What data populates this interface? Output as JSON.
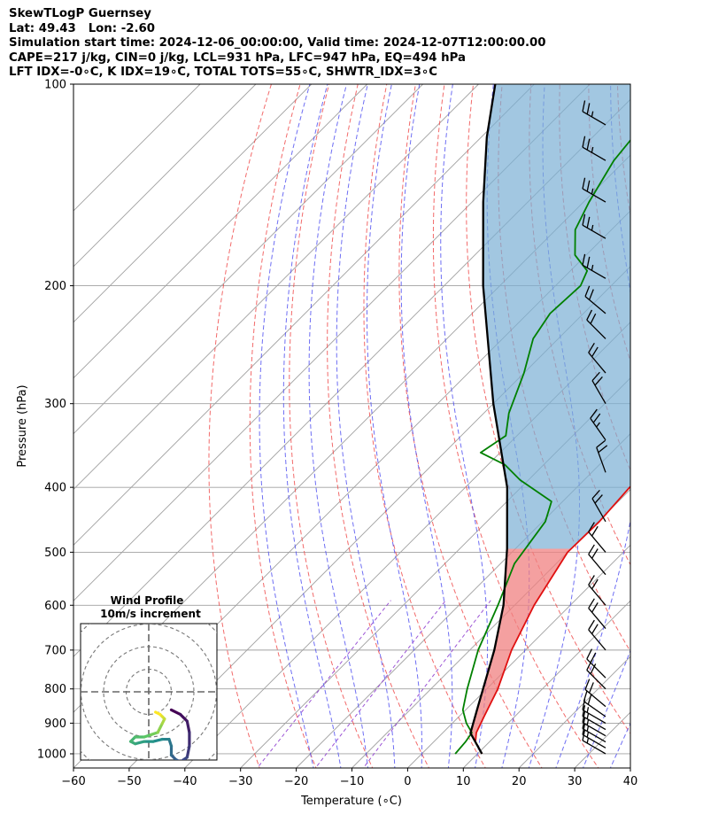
{
  "header": {
    "line1": "SkewTLogP Guernsey",
    "line2": "Lat: 49.43   Lon: -2.60",
    "line3": "Simulation start time: 2024-12-06_00:00:00, Valid time: 2024-12-07T12:00:00.00",
    "line4": "CAPE=217 j/kg, CIN=0 j/kg, LCL=931 hPa, LFC=947 hPa, EQ=494 hPa",
    "line5": "LFT IDX=-0∘C, K IDX=19∘C, TOTAL TOTS=55∘C, SHWTR_IDX=3∘C"
  },
  "chart_data": {
    "type": "line",
    "title": "SkewTLogP Guernsey",
    "xlabel": "Temperature (∘C)",
    "ylabel": "Pressure (hPa)",
    "xlim": [
      -60,
      40
    ],
    "ylim": [
      1050,
      100
    ],
    "y_scale": "log",
    "skew_degrees": 45,
    "grid": true,
    "x_ticks": [
      -60,
      -50,
      -40,
      -30,
      -20,
      -10,
      0,
      10,
      20,
      30,
      40
    ],
    "x_tick_labels": [
      "−60",
      "−50",
      "−40",
      "−30",
      "−20",
      "−10",
      "0",
      "10",
      "20",
      "30",
      "40"
    ],
    "y_ticks": [
      1000,
      900,
      800,
      700,
      600,
      500,
      400,
      300,
      200,
      100
    ],
    "y_tick_labels": [
      "1000",
      "900",
      "800",
      "700",
      "600",
      "500",
      "400",
      "300",
      "200",
      "100"
    ],
    "colors": {
      "temperature": "#e01010",
      "dewpoint": "#008000",
      "parcel": "#000000",
      "cape_fill": "#f08080",
      "cin_fill": "#7bafd4",
      "dry_adiabat": "#f05050",
      "moist_adiabat": "#4a4af0",
      "mixing_ratio": "#9040d0",
      "grid": "#a0a0a0"
    },
    "series": [
      {
        "name": "temperature",
        "points": [
          {
            "p": 1000,
            "t": 10.8
          },
          {
            "p": 960,
            "t": 7.5
          },
          {
            "p": 930,
            "t": 6.0
          },
          {
            "p": 880,
            "t": 4.5
          },
          {
            "p": 800,
            "t": 2.0
          },
          {
            "p": 700,
            "t": -2.5
          },
          {
            "p": 600,
            "t": -6.5
          },
          {
            "p": 500,
            "t": -10.0
          },
          {
            "p": 450,
            "t": -9.8
          },
          {
            "p": 400,
            "t": -10.5
          },
          {
            "p": 370,
            "t": -9.6
          },
          {
            "p": 340,
            "t": -8.2
          },
          {
            "p": 320,
            "t": -6.8
          },
          {
            "p": 300,
            "t": -5.6
          },
          {
            "p": 280,
            "t": -4.0
          },
          {
            "p": 260,
            "t": -3.5
          },
          {
            "p": 240,
            "t": -3.8
          },
          {
            "p": 220,
            "t": -4.0
          },
          {
            "p": 200,
            "t": -5.0
          },
          {
            "p": 180,
            "t": -6.0
          },
          {
            "p": 160,
            "t": -6.0
          },
          {
            "p": 140,
            "t": -11.0
          },
          {
            "p": 120,
            "t": -16.0
          },
          {
            "p": 110,
            "t": -18.5
          },
          {
            "p": 100,
            "t": -20.5
          }
        ]
      },
      {
        "name": "dewpoint",
        "points": [
          {
            "p": 1000,
            "t": 6.0
          },
          {
            "p": 960,
            "t": 5.7
          },
          {
            "p": 930,
            "t": 5.2
          },
          {
            "p": 900,
            "t": 2.5
          },
          {
            "p": 860,
            "t": -0.5
          },
          {
            "p": 800,
            "t": -3.5
          },
          {
            "p": 700,
            "t": -8.5
          },
          {
            "p": 600,
            "t": -13.0
          },
          {
            "p": 520,
            "t": -17.5
          },
          {
            "p": 450,
            "t": -19.5
          },
          {
            "p": 420,
            "t": -22.0
          },
          {
            "p": 390,
            "t": -31.5
          },
          {
            "p": 370,
            "t": -37.0
          },
          {
            "p": 355,
            "t": -43.5
          },
          {
            "p": 335,
            "t": -42.0
          },
          {
            "p": 310,
            "t": -45.5
          },
          {
            "p": 270,
            "t": -50.0
          },
          {
            "p": 240,
            "t": -54.5
          },
          {
            "p": 220,
            "t": -56.0
          },
          {
            "p": 200,
            "t": -55.5
          },
          {
            "p": 190,
            "t": -57.0
          },
          {
            "p": 180,
            "t": -62.0
          },
          {
            "p": 165,
            "t": -66.5
          },
          {
            "p": 150,
            "t": -69.0
          },
          {
            "p": 130,
            "t": -72.0
          },
          {
            "p": 100,
            "t": -74.5
          }
        ]
      },
      {
        "name": "parcel",
        "points": [
          {
            "p": 1000,
            "t": 10.8
          },
          {
            "p": 931,
            "t": 5.0
          },
          {
            "p": 850,
            "t": 1.6
          },
          {
            "p": 700,
            "t": -5.6
          },
          {
            "p": 600,
            "t": -12.0
          },
          {
            "p": 494,
            "t": -21.5
          },
          {
            "p": 400,
            "t": -32.5
          },
          {
            "p": 300,
            "t": -50.0
          },
          {
            "p": 200,
            "t": -73.0
          },
          {
            "p": 150,
            "t": -88.0
          },
          {
            "p": 120,
            "t": -99.0
          },
          {
            "p": 100,
            "t": -107.0
          }
        ]
      }
    ],
    "inset": {
      "title_line1": "Wind Profile",
      "title_line2": "10m/s increment",
      "ring_increment_ms": 10,
      "rings": 3,
      "hodograph": [
        {
          "u": 5.0,
          "v": -4.0
        },
        {
          "u": 7.0,
          "v": -5.0
        },
        {
          "u": 8.5,
          "v": -6.5
        },
        {
          "u": 9.0,
          "v": -9.0
        },
        {
          "u": 9.0,
          "v": -12.0
        },
        {
          "u": 8.5,
          "v": -14.5
        },
        {
          "u": 7.0,
          "v": -15.5
        },
        {
          "u": 6.0,
          "v": -15.0
        },
        {
          "u": 5.0,
          "v": -14.0
        },
        {
          "u": 5.0,
          "v": -12.0
        },
        {
          "u": 4.5,
          "v": -10.5
        },
        {
          "u": 3.0,
          "v": -10.5
        },
        {
          "u": 1.0,
          "v": -11.0
        },
        {
          "u": -1.0,
          "v": -11.0
        },
        {
          "u": -3.0,
          "v": -11.5
        },
        {
          "u": -4.0,
          "v": -11.0
        },
        {
          "u": -3.0,
          "v": -10.0
        },
        {
          "u": -1.0,
          "v": -10.0
        },
        {
          "u": 0.5,
          "v": -9.5
        },
        {
          "u": 2.0,
          "v": -9.0
        },
        {
          "u": 3.0,
          "v": -7.0
        },
        {
          "u": 3.5,
          "v": -6.0
        },
        {
          "u": 3.0,
          "v": -5.5
        },
        {
          "u": 2.5,
          "v": -5.0
        },
        {
          "u": 1.5,
          "v": -4.5
        }
      ]
    },
    "wind_barbs": [
      {
        "p": 1000,
        "speed_kt": 15,
        "dir_deg": 300
      },
      {
        "p": 980,
        "speed_kt": 15,
        "dir_deg": 300
      },
      {
        "p": 960,
        "speed_kt": 15,
        "dir_deg": 300
      },
      {
        "p": 940,
        "speed_kt": 15,
        "dir_deg": 300
      },
      {
        "p": 920,
        "speed_kt": 15,
        "dir_deg": 300
      },
      {
        "p": 900,
        "speed_kt": 15,
        "dir_deg": 300
      },
      {
        "p": 880,
        "speed_kt": 20,
        "dir_deg": 305
      },
      {
        "p": 850,
        "speed_kt": 20,
        "dir_deg": 310
      },
      {
        "p": 800,
        "speed_kt": 20,
        "dir_deg": 315
      },
      {
        "p": 770,
        "speed_kt": 20,
        "dir_deg": 315
      },
      {
        "p": 700,
        "speed_kt": 20,
        "dir_deg": 320
      },
      {
        "p": 650,
        "speed_kt": 20,
        "dir_deg": 320
      },
      {
        "p": 600,
        "speed_kt": 20,
        "dir_deg": 320
      },
      {
        "p": 540,
        "speed_kt": 20,
        "dir_deg": 320
      },
      {
        "p": 500,
        "speed_kt": 20,
        "dir_deg": 320
      },
      {
        "p": 450,
        "speed_kt": 20,
        "dir_deg": 330
      },
      {
        "p": 380,
        "speed_kt": 20,
        "dir_deg": 340
      },
      {
        "p": 340,
        "speed_kt": 25,
        "dir_deg": 325
      },
      {
        "p": 300,
        "speed_kt": 20,
        "dir_deg": 330
      },
      {
        "p": 270,
        "speed_kt": 20,
        "dir_deg": 320
      },
      {
        "p": 240,
        "speed_kt": 20,
        "dir_deg": 315
      },
      {
        "p": 220,
        "speed_kt": 20,
        "dir_deg": 310
      },
      {
        "p": 195,
        "speed_kt": 25,
        "dir_deg": 300
      },
      {
        "p": 170,
        "speed_kt": 25,
        "dir_deg": 300
      },
      {
        "p": 150,
        "speed_kt": 25,
        "dir_deg": 300
      },
      {
        "p": 130,
        "speed_kt": 25,
        "dir_deg": 300
      },
      {
        "p": 115,
        "speed_kt": 25,
        "dir_deg": 300
      }
    ]
  }
}
